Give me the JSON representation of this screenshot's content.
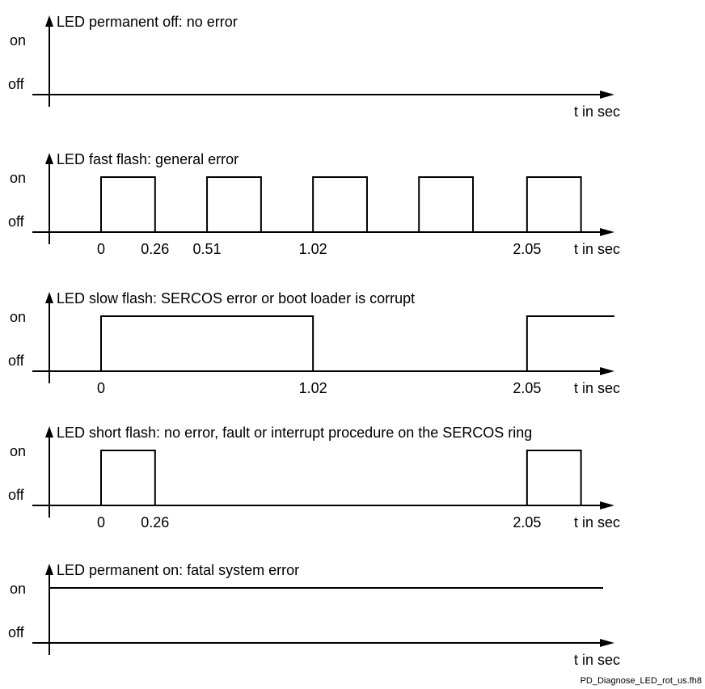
{
  "axis_labels": {
    "on": "on",
    "off": "off",
    "time": "t in sec"
  },
  "footer": "PD_Diagnose_LED_rot_us.fh8",
  "panels": [
    {
      "title": "LED permanent off: no error",
      "ticks": [],
      "segments": []
    },
    {
      "title": "LED fast flash: general error",
      "ticks": [
        "0",
        "0.26",
        "0.51",
        "1.02",
        "2.05"
      ],
      "segments": [
        [
          0,
          0.26
        ],
        [
          0.51,
          0.77
        ],
        [
          1.02,
          1.28
        ],
        [
          1.53,
          1.79
        ],
        [
          2.05,
          2.31
        ]
      ]
    },
    {
      "title": "LED slow flash: SERCOS error or boot loader is corrupt",
      "ticks": [
        "0",
        "1.02",
        "2.05"
      ],
      "segments": [
        [
          0,
          1.02
        ],
        [
          2.05,
          "open"
        ]
      ]
    },
    {
      "title": "LED short flash: no error, fault or interrupt procedure on the SERCOS ring",
      "ticks": [
        "0",
        "0.26",
        "2.05"
      ],
      "segments": [
        [
          0,
          0.26
        ],
        [
          2.05,
          2.31
        ]
      ]
    },
    {
      "title": "LED permanent on: fatal system error",
      "ticks": [],
      "segments": [
        [
          "start",
          "end"
        ]
      ]
    }
  ]
}
